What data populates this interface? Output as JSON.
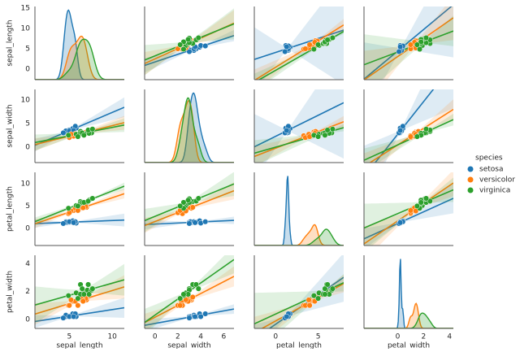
{
  "chart_data": {
    "type": "pairplot",
    "variables": [
      "sepal_length",
      "sepal_width",
      "petal_length",
      "petal_width"
    ],
    "legend_title": "species",
    "legend": "right",
    "xlims": [
      [
        1.0,
        11.4
      ],
      [
        -0.9,
        6.9
      ],
      [
        -2.5,
        8.0
      ],
      [
        -2.6,
        4.3
      ]
    ],
    "xticks": [
      [
        5,
        10
      ],
      [
        0,
        2,
        4,
        6
      ],
      [
        0,
        5
      ],
      [
        0,
        2,
        4
      ]
    ],
    "ylims": [
      [
        -2.6,
        15.4
      ],
      [
        -3.3,
        12.2
      ],
      [
        -3.8,
        12.5
      ],
      [
        -0.65,
        4.6
      ]
    ],
    "yticks": [
      [
        0,
        5,
        10,
        15
      ],
      [
        0,
        5,
        10
      ],
      [
        0,
        5,
        10
      ],
      [
        0,
        2,
        4
      ]
    ],
    "series": [
      {
        "name": "setosa",
        "color": "#1f77b4",
        "values": [
          [
            5.1,
            4.9,
            4.7,
            4.6,
            5.0,
            5.4,
            4.6,
            5.0,
            5.8,
            5.7,
            4.3,
            5.5
          ],
          [
            3.5,
            3.0,
            3.2,
            3.1,
            3.6,
            3.9,
            3.4,
            3.4,
            4.0,
            4.4,
            3.0,
            3.5
          ],
          [
            1.4,
            1.4,
            1.3,
            1.5,
            1.4,
            1.7,
            1.4,
            1.5,
            1.2,
            1.5,
            1.1,
            1.3
          ],
          [
            0.2,
            0.2,
            0.2,
            0.2,
            0.2,
            0.4,
            0.3,
            0.2,
            0.2,
            0.4,
            0.1,
            0.2
          ]
        ]
      },
      {
        "name": "versicolor",
        "color": "#ff7f0e",
        "values": [
          [
            7.0,
            6.4,
            6.9,
            5.5,
            6.5,
            5.7,
            6.3,
            4.9,
            6.6,
            5.2,
            5.0,
            6.0
          ],
          [
            3.2,
            3.2,
            3.1,
            2.3,
            2.8,
            2.8,
            3.3,
            2.4,
            2.9,
            2.7,
            2.0,
            2.2
          ],
          [
            4.7,
            4.5,
            4.9,
            4.0,
            4.6,
            4.5,
            4.7,
            3.3,
            4.6,
            3.9,
            3.5,
            4.0
          ],
          [
            1.4,
            1.5,
            1.5,
            1.3,
            1.5,
            1.3,
            1.6,
            1.0,
            1.3,
            1.4,
            1.0,
            1.0
          ]
        ]
      },
      {
        "name": "virginica",
        "color": "#2ca02c",
        "values": [
          [
            6.3,
            5.8,
            7.1,
            6.3,
            6.5,
            7.6,
            4.9,
            7.3,
            6.7,
            7.2,
            7.7,
            6.0
          ],
          [
            3.3,
            2.7,
            3.0,
            2.9,
            3.0,
            3.0,
            2.5,
            2.9,
            2.5,
            3.6,
            3.8,
            2.2
          ],
          [
            6.0,
            5.1,
            5.9,
            5.6,
            5.8,
            6.6,
            4.5,
            6.3,
            5.8,
            6.1,
            6.7,
            5.0
          ],
          [
            2.5,
            1.9,
            2.1,
            1.8,
            2.2,
            2.1,
            1.7,
            1.8,
            1.8,
            2.5,
            2.2,
            1.5
          ]
        ]
      }
    ]
  }
}
